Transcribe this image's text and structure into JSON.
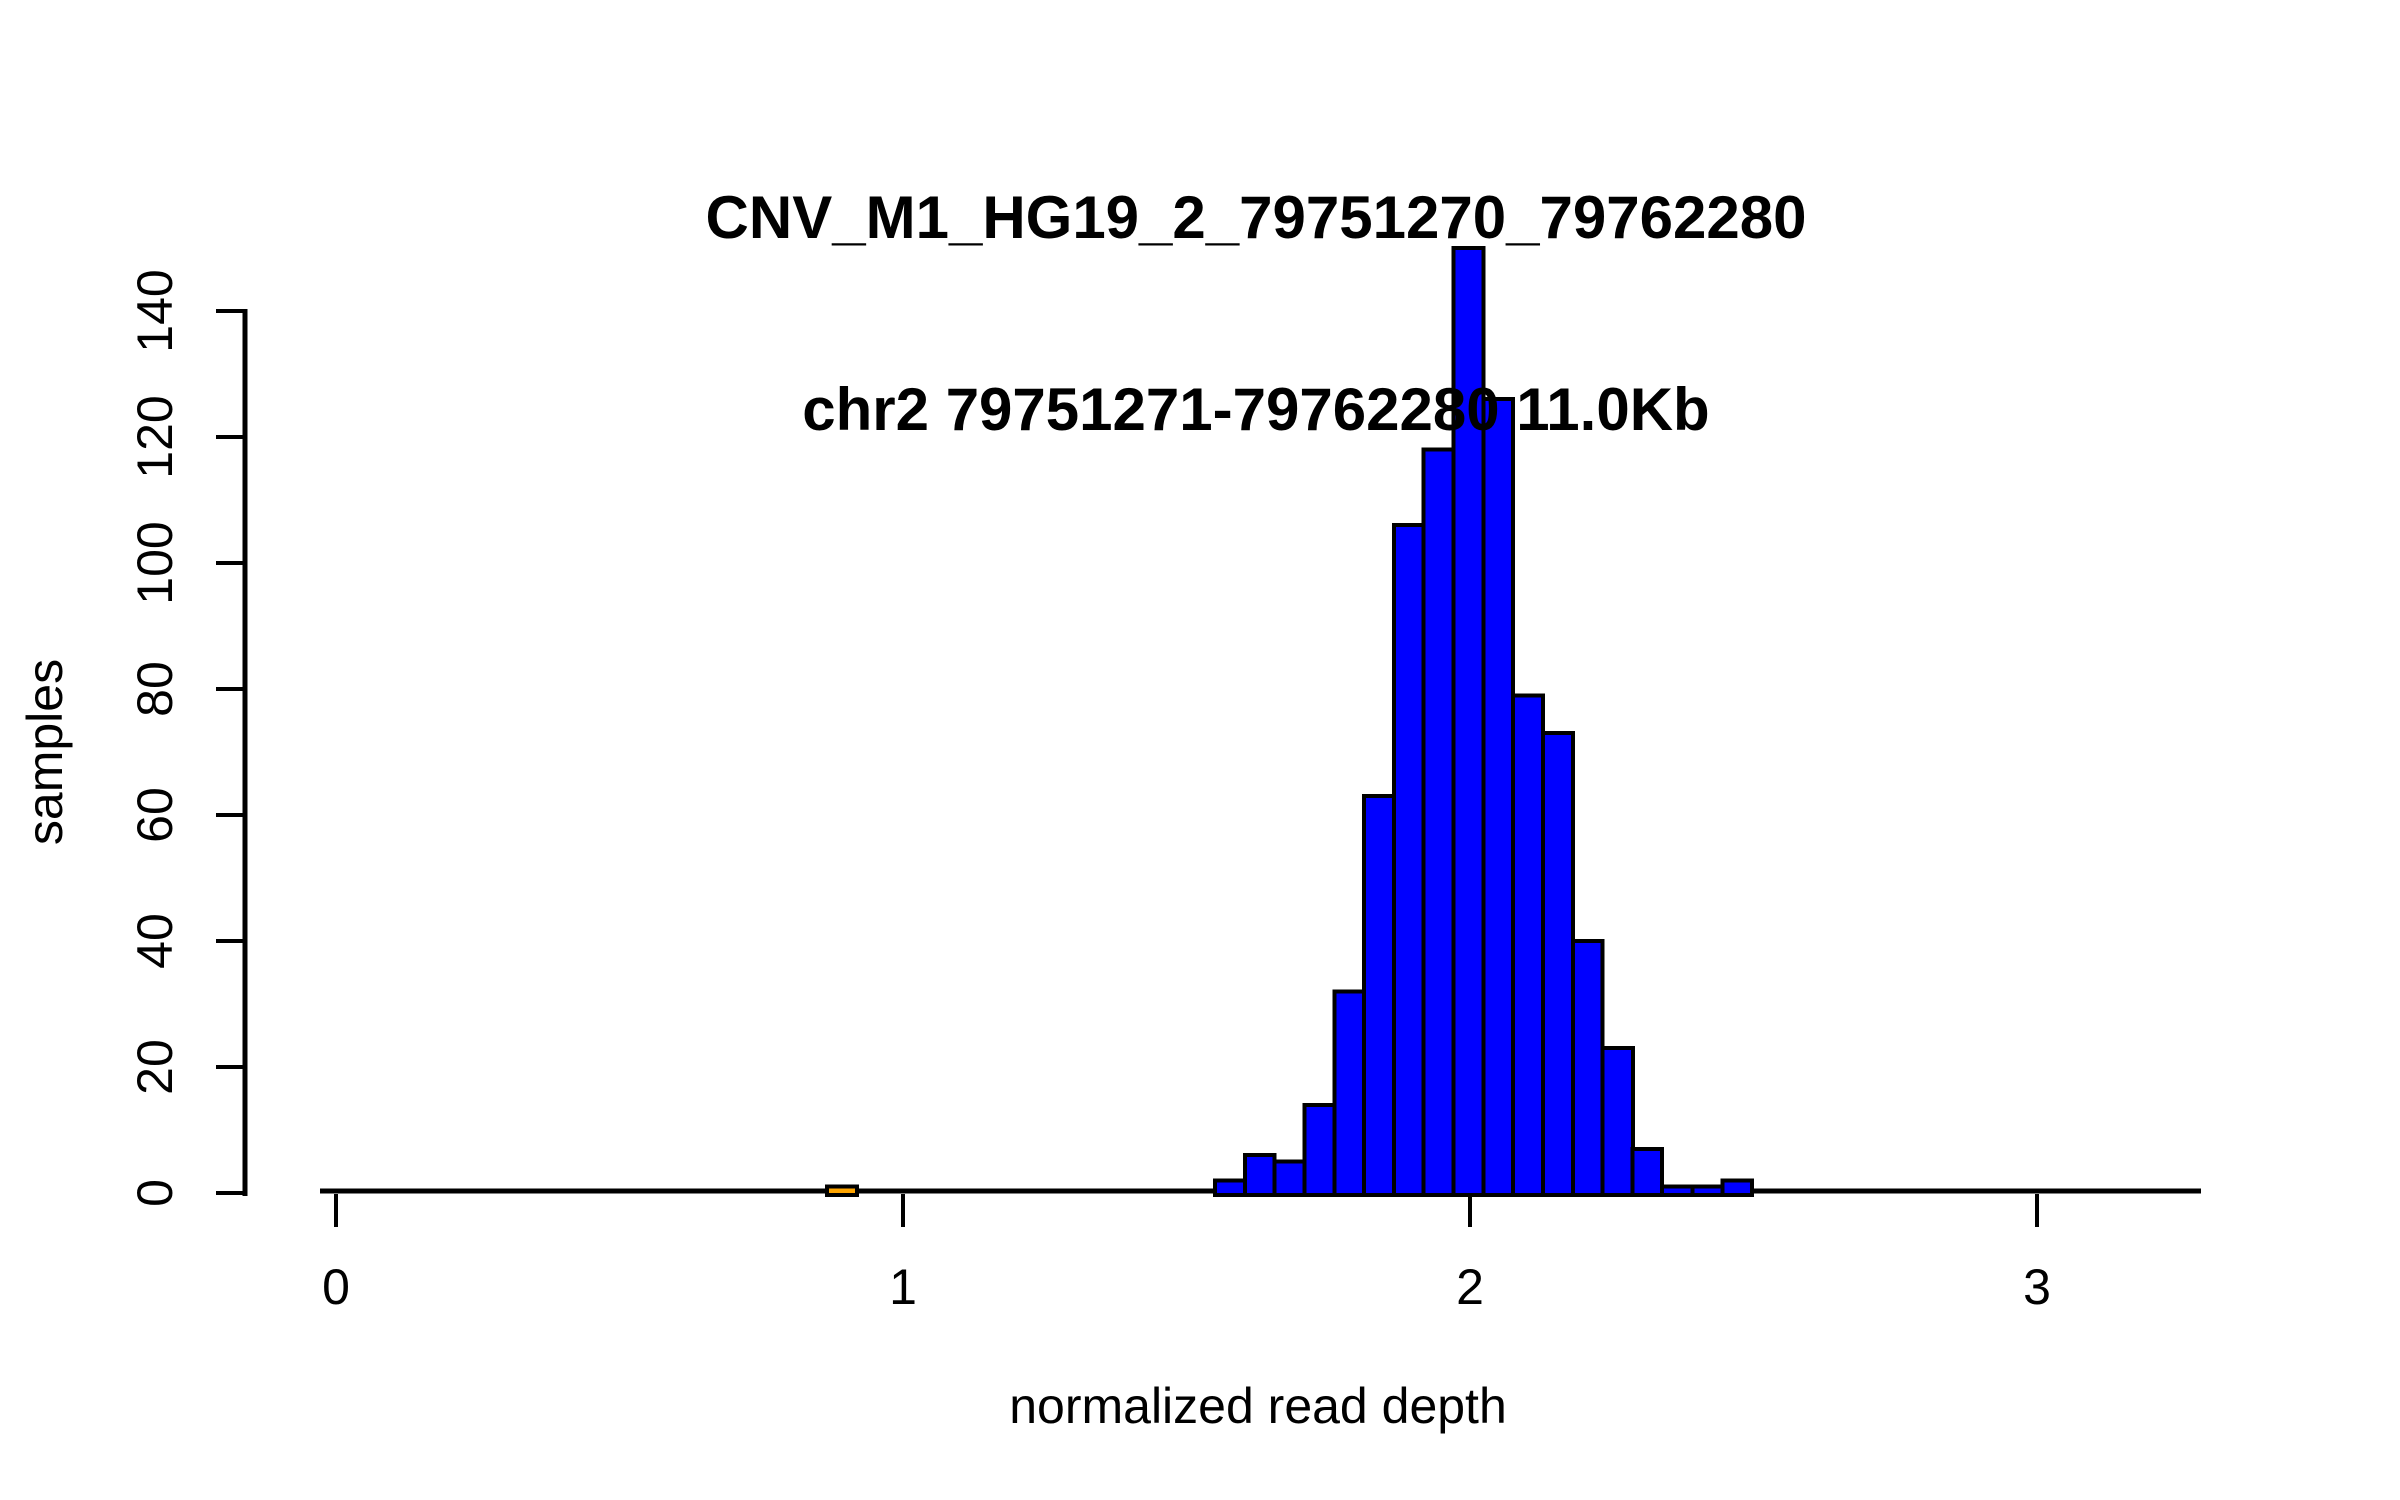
{
  "chart_data": {
    "type": "bar",
    "subtype": "histogram",
    "title_lines": [
      "CNV_M1_HG19_2_79751270_79762280",
      "chr2 79751271-79762280 11.0Kb"
    ],
    "xlabel": "normalized read depth",
    "ylabel": "samples",
    "xlim": [
      -0.03,
      3.29
    ],
    "ylim": [
      0,
      151
    ],
    "x_ticks": [
      0,
      1,
      2,
      3
    ],
    "y_ticks": [
      0,
      20,
      40,
      60,
      80,
      100,
      120,
      140
    ],
    "grid": false,
    "legend": null,
    "colors": {
      "bar_fill": "#0000FF",
      "outlier_bar_fill": "#FFA500",
      "bar_border": "#000000",
      "axis": "#000000",
      "text": "#000000",
      "background": "#FFFFFF"
    },
    "bins": [
      {
        "x0": 0.866,
        "x1": 0.919,
        "count": 1,
        "color": "#FFA500"
      },
      {
        "x0": 1.55,
        "x1": 1.603,
        "count": 2,
        "color": "#0000FF"
      },
      {
        "x0": 1.603,
        "x1": 1.655,
        "count": 6,
        "color": "#0000FF"
      },
      {
        "x0": 1.655,
        "x1": 1.708,
        "count": 5,
        "color": "#0000FF"
      },
      {
        "x0": 1.708,
        "x1": 1.761,
        "count": 14,
        "color": "#0000FF"
      },
      {
        "x0": 1.761,
        "x1": 1.813,
        "count": 32,
        "color": "#0000FF"
      },
      {
        "x0": 1.813,
        "x1": 1.866,
        "count": 63,
        "color": "#0000FF"
      },
      {
        "x0": 1.866,
        "x1": 1.918,
        "count": 106,
        "color": "#0000FF"
      },
      {
        "x0": 1.918,
        "x1": 1.971,
        "count": 118,
        "color": "#0000FF"
      },
      {
        "x0": 1.971,
        "x1": 2.024,
        "count": 150,
        "color": "#0000FF"
      },
      {
        "x0": 2.024,
        "x1": 2.076,
        "count": 126,
        "color": "#0000FF"
      },
      {
        "x0": 2.076,
        "x1": 2.129,
        "count": 79,
        "color": "#0000FF"
      },
      {
        "x0": 2.129,
        "x1": 2.182,
        "count": 73,
        "color": "#0000FF"
      },
      {
        "x0": 2.182,
        "x1": 2.234,
        "count": 40,
        "color": "#0000FF"
      },
      {
        "x0": 2.234,
        "x1": 2.287,
        "count": 23,
        "color": "#0000FF"
      },
      {
        "x0": 2.287,
        "x1": 2.339,
        "count": 7,
        "color": "#0000FF"
      },
      {
        "x0": 2.339,
        "x1": 2.392,
        "count": 1,
        "color": "#0000FF"
      },
      {
        "x0": 2.392,
        "x1": 2.445,
        "count": 1,
        "color": "#0000FF"
      },
      {
        "x0": 2.445,
        "x1": 2.497,
        "count": 2,
        "color": "#0000FF"
      }
    ]
  }
}
